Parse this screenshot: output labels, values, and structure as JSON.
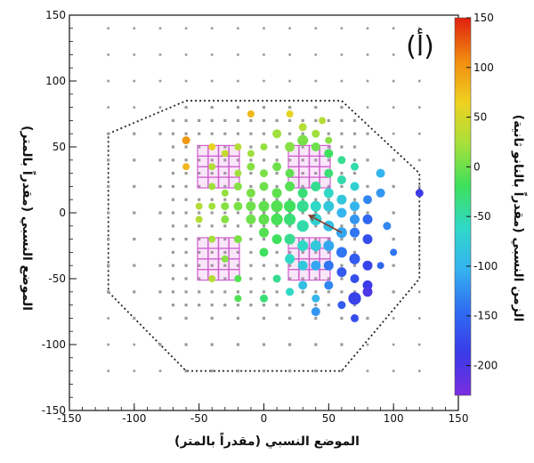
{
  "chart_data": {
    "type": "scatter",
    "panel_label": "(أ)",
    "xlabel": "الموضع النسبي (مقدراً بالمتر)",
    "ylabel": "الموضع النسبي (مقدراً بالمتر)",
    "colorbar_label": "الزمن النسبي (مقدراً بالنانو ثانية)",
    "xlim": [
      -150,
      150
    ],
    "ylim": [
      -150,
      150
    ],
    "x_ticks": [
      -150,
      -100,
      -50,
      0,
      50,
      100,
      150
    ],
    "y_ticks": [
      -150,
      -100,
      -50,
      0,
      50,
      100,
      150
    ],
    "colorbar": {
      "range": [
        -230,
        150
      ],
      "ticks": [
        150,
        100,
        50,
        0,
        -50,
        -100,
        -150,
        -200
      ],
      "colors": [
        "#7a2ee0",
        "#3a3ae8",
        "#2f6cf2",
        "#36b2f0",
        "#2fd8c8",
        "#3ee05a",
        "#a8e03a",
        "#f0d020",
        "#f08a10",
        "#e02010"
      ]
    },
    "array": {
      "spacing": 10,
      "extent": 130,
      "boundary": [
        [
          -60,
          85
        ],
        [
          60,
          85
        ],
        [
          120,
          30
        ],
        [
          120,
          -50
        ],
        [
          60,
          -120
        ],
        [
          -60,
          -120
        ],
        [
          -120,
          -60
        ],
        [
          -120,
          60
        ]
      ]
    },
    "muon_grids": [
      {
        "cx": -35,
        "cy": 35
      },
      {
        "cx": 35,
        "cy": 35
      },
      {
        "cx": -35,
        "cy": -35
      },
      {
        "cx": 35,
        "cy": -35
      }
    ],
    "shower_core": {
      "x": 35,
      "y": 0
    },
    "arrow": {
      "from": [
        60,
        -15
      ],
      "to": [
        35,
        -2
      ]
    },
    "hits": [
      {
        "x": 30,
        "y": 65,
        "t": 30,
        "s": 0.4
      },
      {
        "x": 40,
        "y": 60,
        "t": 20,
        "s": 0.4
      },
      {
        "x": 50,
        "y": 55,
        "t": 10,
        "s": 0.3
      },
      {
        "x": 20,
        "y": 75,
        "t": 60,
        "s": 0.3
      },
      {
        "x": 45,
        "y": 70,
        "t": 30,
        "s": 0.3
      },
      {
        "x": -10,
        "y": 75,
        "t": 80,
        "s": 0.3
      },
      {
        "x": -60,
        "y": 55,
        "t": 100,
        "s": 0.4
      },
      {
        "x": -40,
        "y": 50,
        "t": 60,
        "s": 0.3
      },
      {
        "x": -30,
        "y": 45,
        "t": 40,
        "s": 0.3
      },
      {
        "x": -20,
        "y": 50,
        "t": 30,
        "s": 0.3
      },
      {
        "x": -10,
        "y": 45,
        "t": 20,
        "s": 0.3
      },
      {
        "x": 0,
        "y": 50,
        "t": 15,
        "s": 0.3
      },
      {
        "x": 10,
        "y": 60,
        "t": 20,
        "s": 0.5
      },
      {
        "x": 20,
        "y": 50,
        "t": 10,
        "s": 0.6
      },
      {
        "x": 30,
        "y": 55,
        "t": 5,
        "s": 0.7
      },
      {
        "x": 40,
        "y": 50,
        "t": 0,
        "s": 0.5
      },
      {
        "x": 50,
        "y": 45,
        "t": -20,
        "s": 0.5
      },
      {
        "x": 60,
        "y": 40,
        "t": -40,
        "s": 0.4
      },
      {
        "x": 70,
        "y": 35,
        "t": -50,
        "s": 0.4
      },
      {
        "x": -40,
        "y": 35,
        "t": 30,
        "s": 0.3
      },
      {
        "x": -20,
        "y": 30,
        "t": 20,
        "s": 0.3
      },
      {
        "x": -10,
        "y": 35,
        "t": 10,
        "s": 0.4
      },
      {
        "x": 0,
        "y": 30,
        "t": 5,
        "s": 0.4
      },
      {
        "x": 10,
        "y": 35,
        "t": 0,
        "s": 0.5
      },
      {
        "x": 20,
        "y": 30,
        "t": -5,
        "s": 0.5
      },
      {
        "x": 50,
        "y": 30,
        "t": -30,
        "s": 0.5
      },
      {
        "x": 60,
        "y": 25,
        "t": -50,
        "s": 0.5
      },
      {
        "x": 70,
        "y": 20,
        "t": -70,
        "s": 0.5
      },
      {
        "x": 90,
        "y": 30,
        "t": -100,
        "s": 0.5
      },
      {
        "x": 90,
        "y": 15,
        "t": -120,
        "s": 0.5
      },
      {
        "x": 120,
        "y": 15,
        "t": -190,
        "s": 0.4
      },
      {
        "x": -40,
        "y": 20,
        "t": 20,
        "s": 0.3
      },
      {
        "x": -30,
        "y": 15,
        "t": 15,
        "s": 0.3
      },
      {
        "x": -20,
        "y": 20,
        "t": 10,
        "s": 0.4
      },
      {
        "x": -10,
        "y": 15,
        "t": 5,
        "s": 0.5
      },
      {
        "x": 0,
        "y": 20,
        "t": 0,
        "s": 0.5
      },
      {
        "x": 10,
        "y": 15,
        "t": -5,
        "s": 0.6
      },
      {
        "x": 20,
        "y": 20,
        "t": -10,
        "s": 0.6
      },
      {
        "x": 30,
        "y": 15,
        "t": -30,
        "s": 0.6
      },
      {
        "x": 40,
        "y": 20,
        "t": -40,
        "s": 0.6
      },
      {
        "x": 50,
        "y": 15,
        "t": -60,
        "s": 0.6
      },
      {
        "x": 60,
        "y": 10,
        "t": -80,
        "s": 0.6
      },
      {
        "x": 70,
        "y": 5,
        "t": -100,
        "s": 0.6
      },
      {
        "x": 80,
        "y": 10,
        "t": -130,
        "s": 0.5
      },
      {
        "x": -50,
        "y": 5,
        "t": 30,
        "s": 0.3
      },
      {
        "x": -40,
        "y": 5,
        "t": 20,
        "s": 0.3
      },
      {
        "x": -30,
        "y": 5,
        "t": 10,
        "s": 0.4
      },
      {
        "x": -20,
        "y": 5,
        "t": 5,
        "s": 0.5
      },
      {
        "x": -10,
        "y": 5,
        "t": 0,
        "s": 0.6
      },
      {
        "x": 0,
        "y": 5,
        "t": -5,
        "s": 0.7
      },
      {
        "x": 10,
        "y": 5,
        "t": -10,
        "s": 0.8
      },
      {
        "x": 20,
        "y": 5,
        "t": -20,
        "s": 0.8
      },
      {
        "x": 30,
        "y": 5,
        "t": -40,
        "s": 0.8
      },
      {
        "x": 40,
        "y": 5,
        "t": -60,
        "s": 0.7
      },
      {
        "x": 50,
        "y": 5,
        "t": -80,
        "s": 0.7
      },
      {
        "x": 60,
        "y": 0,
        "t": -100,
        "s": 0.6
      },
      {
        "x": 70,
        "y": -5,
        "t": -120,
        "s": 0.6
      },
      {
        "x": 80,
        "y": -5,
        "t": -150,
        "s": 0.6
      },
      {
        "x": -50,
        "y": -5,
        "t": 30,
        "s": 0.3
      },
      {
        "x": -30,
        "y": -5,
        "t": 10,
        "s": 0.4
      },
      {
        "x": -10,
        "y": -5,
        "t": 0,
        "s": 0.6
      },
      {
        "x": 0,
        "y": -5,
        "t": -5,
        "s": 0.7
      },
      {
        "x": 10,
        "y": -5,
        "t": -15,
        "s": 0.8
      },
      {
        "x": 20,
        "y": -5,
        "t": -30,
        "s": 0.8
      },
      {
        "x": 30,
        "y": -10,
        "t": -50,
        "s": 0.8
      },
      {
        "x": 40,
        "y": -5,
        "t": -70,
        "s": 0.8
      },
      {
        "x": 50,
        "y": -10,
        "t": -90,
        "s": 0.7
      },
      {
        "x": 60,
        "y": -15,
        "t": -110,
        "s": 0.7
      },
      {
        "x": 70,
        "y": -15,
        "t": -140,
        "s": 0.6
      },
      {
        "x": 80,
        "y": -20,
        "t": -170,
        "s": 0.6
      },
      {
        "x": -40,
        "y": -20,
        "t": 20,
        "s": 0.3
      },
      {
        "x": -20,
        "y": -20,
        "t": 5,
        "s": 0.4
      },
      {
        "x": 0,
        "y": -15,
        "t": -10,
        "s": 0.6
      },
      {
        "x": 10,
        "y": -20,
        "t": -20,
        "s": 0.6
      },
      {
        "x": 20,
        "y": -20,
        "t": -40,
        "s": 0.7
      },
      {
        "x": 30,
        "y": -25,
        "t": -60,
        "s": 0.7
      },
      {
        "x": 40,
        "y": -25,
        "t": -80,
        "s": 0.7
      },
      {
        "x": 50,
        "y": -25,
        "t": -110,
        "s": 0.7
      },
      {
        "x": 60,
        "y": -30,
        "t": -140,
        "s": 0.7
      },
      {
        "x": 70,
        "y": -35,
        "t": -160,
        "s": 0.7
      },
      {
        "x": 80,
        "y": -40,
        "t": -180,
        "s": 0.6
      },
      {
        "x": -30,
        "y": -35,
        "t": 10,
        "s": 0.3
      },
      {
        "x": 0,
        "y": -30,
        "t": -20,
        "s": 0.5
      },
      {
        "x": 20,
        "y": -35,
        "t": -60,
        "s": 0.6
      },
      {
        "x": 30,
        "y": -40,
        "t": -80,
        "s": 0.6
      },
      {
        "x": 40,
        "y": -40,
        "t": -110,
        "s": 0.6
      },
      {
        "x": 50,
        "y": -40,
        "t": -140,
        "s": 0.6
      },
      {
        "x": 60,
        "y": -45,
        "t": -160,
        "s": 0.6
      },
      {
        "x": 70,
        "y": -50,
        "t": -170,
        "s": 0.5
      },
      {
        "x": 80,
        "y": -55,
        "t": -190,
        "s": 0.6
      },
      {
        "x": -20,
        "y": -50,
        "t": -10,
        "s": 0.3
      },
      {
        "x": 10,
        "y": -50,
        "t": -40,
        "s": 0.4
      },
      {
        "x": 30,
        "y": -55,
        "t": -90,
        "s": 0.5
      },
      {
        "x": 50,
        "y": -55,
        "t": -130,
        "s": 0.5
      },
      {
        "x": 70,
        "y": -65,
        "t": -180,
        "s": 0.9
      },
      {
        "x": 80,
        "y": -60,
        "t": -200,
        "s": 0.6
      },
      {
        "x": -20,
        "y": -65,
        "t": -10,
        "s": 0.3
      },
      {
        "x": 0,
        "y": -65,
        "t": -30,
        "s": 0.4
      },
      {
        "x": 20,
        "y": -60,
        "t": -60,
        "s": 0.4
      },
      {
        "x": 40,
        "y": -65,
        "t": -100,
        "s": 0.4
      },
      {
        "x": 60,
        "y": -70,
        "t": -160,
        "s": 0.4
      },
      {
        "x": 40,
        "y": -75,
        "t": -120,
        "s": 0.5
      },
      {
        "x": 70,
        "y": -80,
        "t": -170,
        "s": 0.4
      },
      {
        "x": -60,
        "y": 35,
        "t": 80,
        "s": 0.3
      },
      {
        "x": -40,
        "y": -50,
        "t": 30,
        "s": 0.3
      },
      {
        "x": 95,
        "y": -10,
        "t": -130,
        "s": 0.4
      },
      {
        "x": 100,
        "y": -30,
        "t": -140,
        "s": 0.3
      },
      {
        "x": 90,
        "y": -40,
        "t": -150,
        "s": 0.3
      }
    ]
  }
}
